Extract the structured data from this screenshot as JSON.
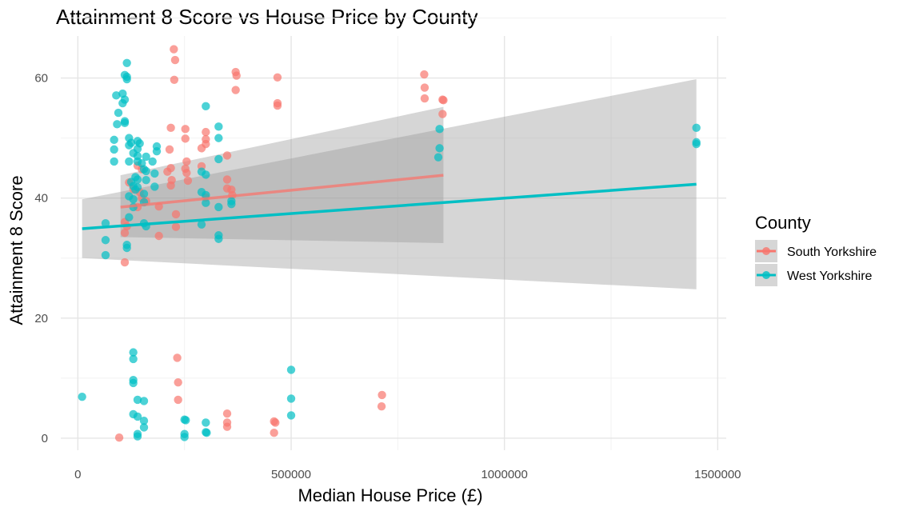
{
  "chart_data": {
    "type": "scatter",
    "title": "Attainment 8 Score vs House Price by County",
    "xlabel": "Median House Price (£)",
    "ylabel": "Attainment 8 Score",
    "xlim": [
      -40000,
      1520000
    ],
    "ylim": [
      -2,
      67
    ],
    "x_ticks": [
      0,
      500000,
      1000000,
      1500000
    ],
    "x_tick_labels": [
      "0",
      "500000",
      "1000000",
      "1500000"
    ],
    "y_ticks": [
      0,
      20,
      40,
      60
    ],
    "y_tick_labels": [
      "0",
      "20",
      "40",
      "60"
    ],
    "grid": true,
    "legend": {
      "title": "County",
      "position": "right"
    },
    "series": [
      {
        "name": "South Yorkshire",
        "color": "#F8766D",
        "points": [
          [
            225000,
            64.8
          ],
          [
            228000,
            63.0
          ],
          [
            226000,
            59.7
          ],
          [
            370000,
            61.0
          ],
          [
            372000,
            60.4
          ],
          [
            370000,
            58.0
          ],
          [
            468000,
            60.1
          ],
          [
            468000,
            55.8
          ],
          [
            468000,
            55.4
          ],
          [
            812000,
            60.6
          ],
          [
            813000,
            58.4
          ],
          [
            813000,
            56.6
          ],
          [
            855000,
            56.4
          ],
          [
            857000,
            56.3
          ],
          [
            855000,
            54.0
          ],
          [
            218000,
            51.7
          ],
          [
            252000,
            51.5
          ],
          [
            300000,
            51.0
          ],
          [
            300000,
            49.8
          ],
          [
            300000,
            49.0
          ],
          [
            252000,
            49.9
          ],
          [
            215000,
            48.1
          ],
          [
            290000,
            48.3
          ],
          [
            350000,
            47.1
          ],
          [
            255000,
            46.1
          ],
          [
            290000,
            45.3
          ],
          [
            218000,
            45.0
          ],
          [
            252000,
            44.9
          ],
          [
            255000,
            44.2
          ],
          [
            140000,
            45.4
          ],
          [
            150000,
            44.8
          ],
          [
            210000,
            44.4
          ],
          [
            220000,
            43.0
          ],
          [
            218000,
            42.1
          ],
          [
            258000,
            42.9
          ],
          [
            350000,
            43.1
          ],
          [
            350000,
            41.6
          ],
          [
            360000,
            41.4
          ],
          [
            362000,
            40.5
          ],
          [
            300000,
            40.1
          ],
          [
            120000,
            42.6
          ],
          [
            130000,
            41.5
          ],
          [
            145000,
            41.0
          ],
          [
            150000,
            40.0
          ],
          [
            160000,
            39.5
          ],
          [
            140000,
            38.5
          ],
          [
            190000,
            38.6
          ],
          [
            230000,
            37.3
          ],
          [
            110000,
            36.0
          ],
          [
            115000,
            35.3
          ],
          [
            230000,
            35.2
          ],
          [
            110000,
            34.2
          ],
          [
            190000,
            33.7
          ],
          [
            110000,
            29.3
          ],
          [
            233000,
            13.4
          ],
          [
            235000,
            9.3
          ],
          [
            235000,
            6.4
          ],
          [
            713000,
            7.2
          ],
          [
            712000,
            5.3
          ],
          [
            350000,
            4.1
          ],
          [
            350000,
            2.6
          ],
          [
            350000,
            1.9
          ],
          [
            460000,
            2.8
          ],
          [
            463000,
            2.6
          ],
          [
            460000,
            0.9
          ],
          [
            97000,
            0.1
          ]
        ],
        "trend": {
          "x": [
            100000,
            857000
          ],
          "y": [
            38.5,
            43.8
          ],
          "ci_upper": [
            43.8,
            55.2
          ],
          "ci_lower": [
            33.5,
            32.5
          ]
        }
      },
      {
        "name": "West Yorkshire",
        "color": "#00BFC4",
        "points": [
          [
            115000,
            62.5
          ],
          [
            110000,
            60.5
          ],
          [
            115000,
            60.2
          ],
          [
            115000,
            59.8
          ],
          [
            105000,
            57.4
          ],
          [
            90000,
            57.1
          ],
          [
            110000,
            56.4
          ],
          [
            105000,
            55.8
          ],
          [
            95000,
            54.2
          ],
          [
            110000,
            52.8
          ],
          [
            110000,
            52.5
          ],
          [
            92000,
            52.3
          ],
          [
            300000,
            55.3
          ],
          [
            330000,
            51.9
          ],
          [
            330000,
            50.0
          ],
          [
            85000,
            49.7
          ],
          [
            120000,
            50.0
          ],
          [
            125000,
            49.2
          ],
          [
            140000,
            49.5
          ],
          [
            145000,
            49.1
          ],
          [
            120000,
            48.8
          ],
          [
            185000,
            48.6
          ],
          [
            140000,
            48.2
          ],
          [
            85000,
            48.1
          ],
          [
            185000,
            47.8
          ],
          [
            130000,
            47.5
          ],
          [
            140000,
            47.0
          ],
          [
            160000,
            46.9
          ],
          [
            85000,
            46.1
          ],
          [
            120000,
            46.1
          ],
          [
            140000,
            46.1
          ],
          [
            175000,
            46.1
          ],
          [
            150000,
            45.8
          ],
          [
            330000,
            46.5
          ],
          [
            155000,
            44.8
          ],
          [
            160000,
            44.5
          ],
          [
            180000,
            44.1
          ],
          [
            300000,
            43.9
          ],
          [
            290000,
            44.4
          ],
          [
            135000,
            43.5
          ],
          [
            140000,
            43.1
          ],
          [
            160000,
            43.0
          ],
          [
            125000,
            42.7
          ],
          [
            130000,
            42.0
          ],
          [
            140000,
            41.8
          ],
          [
            180000,
            41.9
          ],
          [
            135000,
            41.4
          ],
          [
            290000,
            41.0
          ],
          [
            300000,
            40.5
          ],
          [
            155000,
            40.7
          ],
          [
            120000,
            40.3
          ],
          [
            130000,
            39.8
          ],
          [
            155000,
            39.3
          ],
          [
            300000,
            39.2
          ],
          [
            360000,
            39.5
          ],
          [
            360000,
            39.0
          ],
          [
            130000,
            38.5
          ],
          [
            330000,
            38.5
          ],
          [
            120000,
            36.8
          ],
          [
            155000,
            35.8
          ],
          [
            160000,
            35.3
          ],
          [
            290000,
            35.6
          ],
          [
            65000,
            35.8
          ],
          [
            330000,
            33.8
          ],
          [
            330000,
            33.2
          ],
          [
            65000,
            33.0
          ],
          [
            115000,
            32.2
          ],
          [
            115000,
            31.7
          ],
          [
            65000,
            30.5
          ],
          [
            848000,
            51.5
          ],
          [
            848000,
            48.3
          ],
          [
            845000,
            46.8
          ],
          [
            1450000,
            51.7
          ],
          [
            1450000,
            49.3
          ],
          [
            1450000,
            49.0
          ],
          [
            130000,
            14.3
          ],
          [
            130000,
            13.2
          ],
          [
            130000,
            9.7
          ],
          [
            130000,
            9.2
          ],
          [
            500000,
            11.4
          ],
          [
            500000,
            6.6
          ],
          [
            140000,
            6.4
          ],
          [
            155000,
            6.2
          ],
          [
            10000,
            6.9
          ],
          [
            130000,
            4.0
          ],
          [
            140000,
            3.6
          ],
          [
            155000,
            2.9
          ],
          [
            155000,
            1.8
          ],
          [
            140000,
            0.7
          ],
          [
            140000,
            0.3
          ],
          [
            250000,
            3.1
          ],
          [
            253000,
            3.0
          ],
          [
            250000,
            0.7
          ],
          [
            250000,
            0.2
          ],
          [
            300000,
            2.6
          ],
          [
            300000,
            1.0
          ],
          [
            302000,
            0.9
          ],
          [
            500000,
            3.8
          ]
        ],
        "trend": {
          "x": [
            10000,
            1450000
          ],
          "y": [
            34.9,
            42.3
          ],
          "ci_upper": [
            39.8,
            59.8
          ],
          "ci_lower": [
            30.0,
            24.8
          ]
        }
      }
    ]
  }
}
